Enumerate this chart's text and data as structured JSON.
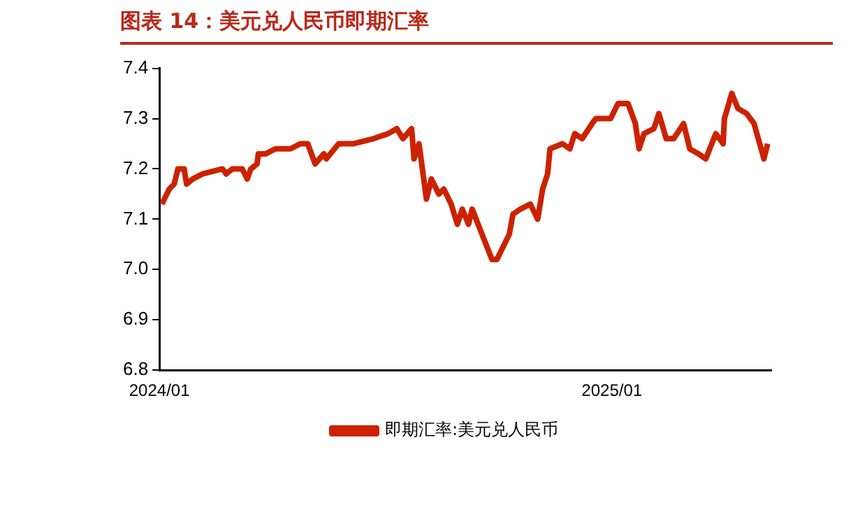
{
  "chart_data": {
    "type": "line",
    "title": "图表 14：美元兑人民币即期汇率",
    "x": [
      "2024-01-03",
      "2024-01-09",
      "2024-01-13",
      "2024-01-16",
      "2024-01-21",
      "2024-01-23",
      "2024-01-28",
      "2024-02-05",
      "2024-02-21",
      "2024-02-24",
      "2024-02-29",
      "2024-03-08",
      "2024-03-12",
      "2024-03-15",
      "2024-03-20",
      "2024-03-21",
      "2024-03-27",
      "2024-04-04",
      "2024-04-16",
      "2024-04-24",
      "2024-04-30",
      "2024-05-06",
      "2024-05-13",
      "2024-05-15",
      "2024-05-25",
      "2024-06-06",
      "2024-06-22",
      "2024-07-04",
      "2024-07-11",
      "2024-07-16",
      "2024-07-23",
      "2024-07-25",
      "2024-07-29",
      "2024-08-04",
      "2024-08-08",
      "2024-08-14",
      "2024-08-18",
      "2024-08-24",
      "2024-08-29",
      "2024-09-02",
      "2024-09-07",
      "2024-09-10",
      "2024-09-18",
      "2024-09-26",
      "2024-09-30",
      "2024-10-10",
      "2024-10-13",
      "2024-10-19",
      "2024-10-27",
      "2024-11-02",
      "2024-11-06",
      "2024-11-10",
      "2024-11-12",
      "2024-11-22",
      "2024-11-28",
      "2024-12-02",
      "2024-12-08",
      "2024-12-16",
      "2024-12-19",
      "2024-12-31",
      "2025-01-06",
      "2025-01-14",
      "2025-01-20",
      "2025-01-23",
      "2025-01-27",
      "2025-02-04",
      "2025-02-08",
      "2025-02-14",
      "2025-02-20",
      "2025-02-28",
      "2025-03-05",
      "2025-03-12",
      "2025-03-18",
      "2025-03-26",
      "2025-04-01",
      "2025-04-02",
      "2025-04-08",
      "2025-04-13",
      "2025-04-20",
      "2025-04-26",
      "2025-05-04",
      "2025-05-07"
    ],
    "series": [
      {
        "name": "即期汇率:美元兑人民币",
        "color": "#cc2200",
        "values": [
          7.13,
          7.16,
          7.17,
          7.2,
          7.2,
          7.17,
          7.18,
          7.19,
          7.2,
          7.19,
          7.2,
          7.2,
          7.18,
          7.2,
          7.21,
          7.23,
          7.23,
          7.24,
          7.24,
          7.25,
          7.25,
          7.21,
          7.23,
          7.22,
          7.25,
          7.25,
          7.26,
          7.27,
          7.28,
          7.26,
          7.28,
          7.22,
          7.25,
          7.14,
          7.18,
          7.15,
          7.16,
          7.13,
          7.09,
          7.12,
          7.09,
          7.12,
          7.07,
          7.02,
          7.02,
          7.07,
          7.11,
          7.12,
          7.13,
          7.1,
          7.16,
          7.19,
          7.24,
          7.25,
          7.24,
          7.27,
          7.26,
          7.29,
          7.3,
          7.3,
          7.33,
          7.33,
          7.29,
          7.24,
          7.27,
          7.28,
          7.31,
          7.26,
          7.26,
          7.29,
          7.24,
          7.23,
          7.22,
          7.27,
          7.25,
          7.3,
          7.35,
          7.32,
          7.31,
          7.29,
          7.22,
          7.25
        ]
      }
    ],
    "xlim": [
      "2024-01-01",
      "2025-05-10"
    ],
    "xticks": [
      {
        "value": "2024-01-01",
        "label": "2024/01"
      },
      {
        "value": "2025-01-01",
        "label": "2025/01"
      }
    ],
    "ylim": [
      6.8,
      7.4
    ],
    "yticks": [
      6.8,
      6.9,
      {
        "value": 7,
        "label": "7.0"
      },
      7.1,
      7.2,
      7.3,
      7.4
    ],
    "grid": false,
    "legend": "bottom",
    "marker": "none",
    "line_style": "solid"
  }
}
